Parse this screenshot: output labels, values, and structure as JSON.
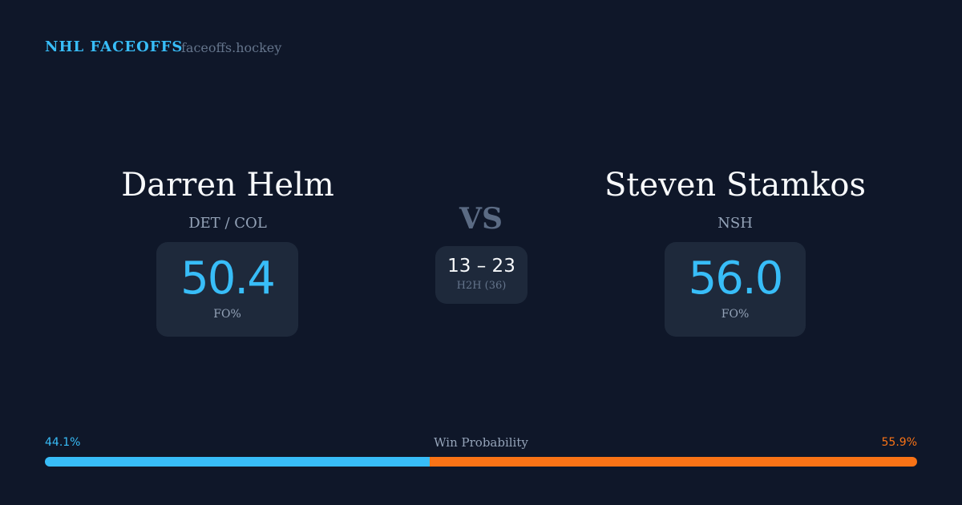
{
  "header": {
    "brand": "NHL FACEOFFS",
    "site": "faceoffs.hockey"
  },
  "player1": {
    "name": "Darren Helm",
    "team": "DET / COL",
    "fo_pct": "50.4",
    "fo_label": "FO%"
  },
  "player2": {
    "name": "Steven Stamkos",
    "team": "NSH",
    "fo_pct": "56.0",
    "fo_label": "FO%"
  },
  "vs": "VS",
  "h2h": {
    "score": "13 – 23",
    "label": "H2H (36)"
  },
  "win_probability": {
    "label": "Win Probability",
    "left_pct": "44.1%",
    "right_pct": "55.9%",
    "left_value": 44.1,
    "right_value": 55.9,
    "left_color": "#38bdf8",
    "right_color": "#f97316"
  }
}
